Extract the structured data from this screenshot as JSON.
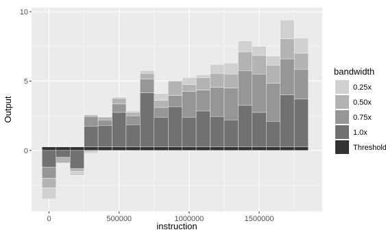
{
  "chart_data": {
    "type": "bar",
    "stacking": "diverging-stacked",
    "xlabel": "instruction",
    "ylabel": "Output",
    "xlim": [
      -125000,
      1950000
    ],
    "ylim": [
      -4.4,
      10.3
    ],
    "x_ticks": [
      0,
      500000,
      1000000,
      1500000
    ],
    "x_tick_labels": [
      "0",
      "500000",
      "1000000",
      "1500000"
    ],
    "y_ticks": [
      0,
      5,
      10
    ],
    "y_tick_labels": [
      "0",
      "5",
      "10"
    ],
    "grid": true,
    "legend": {
      "title": "bandwidth",
      "position": "right",
      "entries": [
        "0.25x",
        "0.50x",
        "0.75x",
        "1.0x",
        "Threshold"
      ]
    },
    "colors": {
      "0.25x": "#d0d0d0",
      "0.50x": "#b3b3b3",
      "0.75x": "#969696",
      "1.0x": "#717171",
      "Threshold": "#333333",
      "panel": "#ebebeb",
      "grid_major": "#ffffff"
    },
    "bin_width": 100000,
    "threshold_value": 0.25,
    "x": [
      0,
      100000,
      200000,
      300000,
      400000,
      500000,
      600000,
      700000,
      800000,
      900000,
      1000000,
      1100000,
      1200000,
      1300000,
      1400000,
      1500000,
      1600000,
      1700000,
      1800000
    ],
    "series": [
      {
        "name": "1.0x",
        "values": [
          -1.2,
          -0.5,
          -1.3,
          1.5,
          1.55,
          2.5,
          1.6,
          3.9,
          2.15,
          2.9,
          2.15,
          2.6,
          2.2,
          1.95,
          3.0,
          2.5,
          1.85,
          3.75,
          3.45
        ]
      },
      {
        "name": "0.75x",
        "values": [
          -0.8,
          0.0,
          0.0,
          0.7,
          0.4,
          0.6,
          0.65,
          1.0,
          0.7,
          0.8,
          1.85,
          1.5,
          2.1,
          2.3,
          2.5,
          2.75,
          2.75,
          2.6,
          2.15
        ]
      },
      {
        "name": "0.50x",
        "values": [
          -0.7,
          -0.4,
          -0.2,
          0.1,
          0.2,
          0.4,
          0.25,
          0.4,
          0.5,
          1.05,
          0.5,
          0.9,
          1.0,
          1.0,
          1.35,
          1.35,
          1.3,
          1.45,
          1.15
        ]
      },
      {
        "name": "0.25x",
        "values": [
          -0.8,
          0.0,
          -0.3,
          -0.2,
          0.0,
          0.1,
          0.1,
          0.2,
          0.5,
          0.0,
          0.5,
          0.2,
          0.65,
          0.8,
          0.8,
          0.65,
          0.65,
          1.35,
          1.1
        ]
      },
      {
        "name": "Threshold",
        "values": [
          0.25,
          0.25,
          0.25,
          0.25,
          0.25,
          0.25,
          0.25,
          0.25,
          0.25,
          0.25,
          0.25,
          0.25,
          0.25,
          0.25,
          0.25,
          0.25,
          0.25,
          0.25,
          0.25
        ]
      }
    ]
  }
}
